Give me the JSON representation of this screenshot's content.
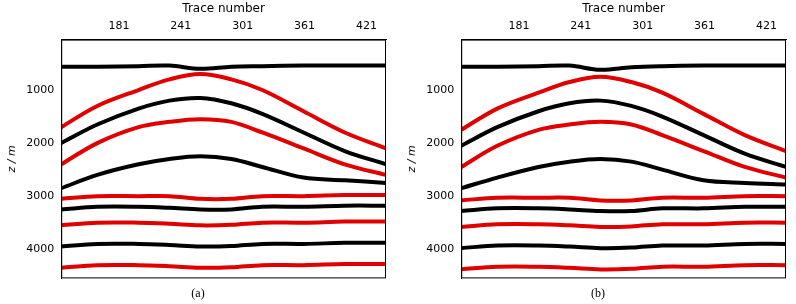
{
  "chart_data": [
    {
      "type": "line",
      "title": "(a)",
      "x_label": "Trace number",
      "y_label": "z / m",
      "x": [
        125,
        160,
        200,
        230,
        260,
        290,
        320,
        360,
        400,
        440
      ],
      "xlim": [
        125,
        440
      ],
      "xticks": [
        181,
        241,
        301,
        361,
        421
      ],
      "ylim": [
        4550,
        50
      ],
      "yticks": [
        1000,
        2000,
        3000,
        4000
      ],
      "grid": false,
      "series": [
        {
          "color": "#000000",
          "values": [
            560,
            560,
            550,
            540,
            600,
            560,
            550,
            540,
            540,
            540
          ]
        },
        {
          "color": "#e00000",
          "values": [
            1700,
            1300,
            1000,
            800,
            700,
            800,
            1000,
            1400,
            1800,
            2100
          ]
        },
        {
          "color": "#000000",
          "values": [
            2000,
            1650,
            1350,
            1200,
            1150,
            1250,
            1450,
            1800,
            2150,
            2400
          ]
        },
        {
          "color": "#e00000",
          "values": [
            2400,
            2000,
            1700,
            1600,
            1550,
            1600,
            1800,
            2100,
            2400,
            2600
          ]
        },
        {
          "color": "#000000",
          "values": [
            2850,
            2600,
            2400,
            2300,
            2250,
            2300,
            2450,
            2650,
            2700,
            2750
          ]
        },
        {
          "color": "#e00000",
          "values": [
            3050,
            3000,
            3000,
            3000,
            3050,
            3050,
            3000,
            3000,
            2980,
            2980
          ]
        },
        {
          "color": "#000000",
          "values": [
            3250,
            3200,
            3200,
            3220,
            3250,
            3250,
            3200,
            3200,
            3180,
            3180
          ]
        },
        {
          "color": "#e00000",
          "values": [
            3550,
            3500,
            3500,
            3520,
            3550,
            3540,
            3500,
            3500,
            3480,
            3480
          ]
        },
        {
          "color": "#000000",
          "values": [
            3950,
            3900,
            3900,
            3920,
            3950,
            3940,
            3900,
            3900,
            3880,
            3880
          ]
        },
        {
          "color": "#e00000",
          "values": [
            4350,
            4300,
            4300,
            4320,
            4350,
            4340,
            4300,
            4300,
            4280,
            4280
          ]
        }
      ]
    },
    {
      "type": "line",
      "title": "(b)",
      "x_label": "Trace number",
      "y_label": "z / m",
      "x": [
        125,
        160,
        200,
        230,
        260,
        290,
        320,
        360,
        400,
        440
      ],
      "xlim": [
        125,
        440
      ],
      "xticks": [
        181,
        241,
        301,
        361,
        421
      ],
      "ylim": [
        4550,
        50
      ],
      "yticks": [
        1000,
        2000,
        3000,
        4000
      ],
      "grid": false,
      "series": [
        {
          "color": "#000000",
          "values": [
            560,
            560,
            550,
            540,
            620,
            570,
            550,
            540,
            540,
            540
          ]
        },
        {
          "color": "#e00000",
          "values": [
            1750,
            1350,
            1050,
            850,
            750,
            850,
            1050,
            1450,
            1850,
            2150
          ]
        },
        {
          "color": "#000000",
          "values": [
            2050,
            1700,
            1400,
            1250,
            1200,
            1300,
            1500,
            1850,
            2200,
            2450
          ]
        },
        {
          "color": "#e00000",
          "values": [
            2450,
            2050,
            1750,
            1650,
            1600,
            1650,
            1850,
            2150,
            2450,
            2650
          ]
        },
        {
          "color": "#000000",
          "values": [
            2850,
            2650,
            2450,
            2350,
            2300,
            2350,
            2500,
            2700,
            2750,
            2780
          ]
        },
        {
          "color": "#e00000",
          "values": [
            3080,
            3030,
            3030,
            3030,
            3080,
            3080,
            3030,
            3030,
            3000,
            3000
          ]
        },
        {
          "color": "#000000",
          "values": [
            3280,
            3230,
            3230,
            3250,
            3280,
            3280,
            3230,
            3230,
            3200,
            3200
          ]
        },
        {
          "color": "#e00000",
          "values": [
            3580,
            3530,
            3530,
            3550,
            3580,
            3570,
            3530,
            3530,
            3500,
            3500
          ]
        },
        {
          "color": "#000000",
          "values": [
            3980,
            3930,
            3930,
            3950,
            3980,
            3970,
            3930,
            3930,
            3900,
            3900
          ]
        },
        {
          "color": "#e00000",
          "values": [
            4380,
            4330,
            4330,
            4350,
            4380,
            4370,
            4330,
            4330,
            4300,
            4300
          ]
        }
      ]
    }
  ]
}
